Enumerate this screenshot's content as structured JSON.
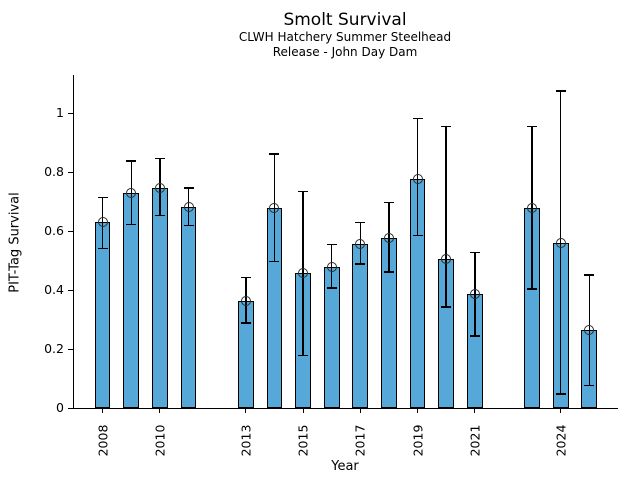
{
  "title": "Smolt Survival",
  "subtitle1": "CLWH Hatchery Summer Steelhead",
  "subtitle2": "Release - John Day Dam",
  "colors": {
    "background": "#ffffff",
    "bar_fill": "#56a8d8",
    "bar_edge": "#000000",
    "errorbar": "#000000",
    "marker_edge": "#2b2b2b",
    "axis": "#000000"
  },
  "chart_data": {
    "type": "bar",
    "title": "Smolt Survival",
    "subtitle1": "CLWH Hatchery Summer Steelhead",
    "subtitle2": "Release - John Day Dam",
    "xlabel": "Year",
    "ylabel": "PIT-Tag Survival",
    "x": [
      2008,
      2009,
      2010,
      2011,
      2013,
      2014,
      2015,
      2016,
      2017,
      2018,
      2019,
      2020,
      2021,
      2023,
      2024,
      2025
    ],
    "values": [
      0.63,
      0.73,
      0.748,
      0.682,
      0.364,
      0.68,
      0.458,
      0.48,
      0.558,
      0.578,
      0.778,
      0.506,
      0.386,
      0.68,
      0.559,
      0.265
    ],
    "error_low": [
      0.541,
      0.622,
      0.653,
      0.619,
      0.289,
      0.497,
      0.178,
      0.408,
      0.488,
      0.462,
      0.585,
      0.342,
      0.245,
      0.404,
      0.048,
      0.076
    ],
    "error_high": [
      0.714,
      0.838,
      0.847,
      0.747,
      0.443,
      0.862,
      0.735,
      0.555,
      0.63,
      0.697,
      0.983,
      0.956,
      0.527,
      0.956,
      1.076,
      0.452
    ],
    "xticks": [
      2008,
      2010,
      2013,
      2015,
      2017,
      2019,
      2021,
      2024
    ],
    "xtick_labels": [
      "2008",
      "2010",
      "2013",
      "2015",
      "2017",
      "2019",
      "2021",
      "2024"
    ],
    "yticks": [
      0,
      0.2,
      0.4,
      0.6,
      0.8,
      1
    ],
    "ytick_labels": [
      "0",
      "0.2",
      "0.4",
      "0.6",
      "0.8",
      "1"
    ],
    "xlim": [
      2007.0,
      2026.0
    ],
    "ylim": [
      0,
      1.13
    ],
    "bar_width_years": 0.55,
    "grid": false,
    "legend": null,
    "marker": "open-circle"
  }
}
